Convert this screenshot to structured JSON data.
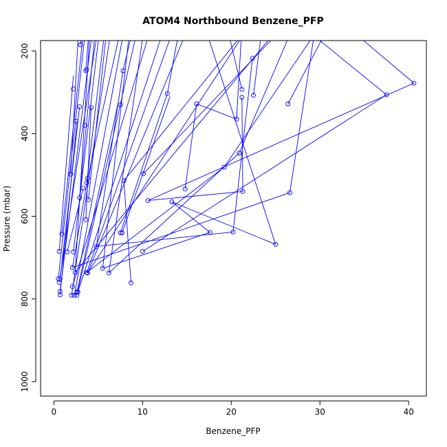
{
  "chart_data": {
    "type": "scatter",
    "title": "ATOM4 Northbound Benzene_PFP",
    "xlabel": "Benzene_PFP",
    "ylabel": "Pressure (mbar)",
    "xlim": [
      -1.5,
      42
    ],
    "ylim": [
      1035,
      175
    ],
    "y_axis": "reversed",
    "x_ticks": [
      0,
      10,
      20,
      30,
      40
    ],
    "y_ticks": [
      200,
      400,
      600,
      800,
      1000
    ],
    "grid": false,
    "legend": "none",
    "colors": {
      "series": "#0000ff",
      "axes": "#000000"
    },
    "series": [
      {
        "type": "scatter",
        "marker": "open-circle",
        "points": [
          [
            3.0,
            185
          ],
          [
            3.7,
            245
          ],
          [
            3.6,
            248
          ],
          [
            7.8,
            248
          ],
          [
            22.4,
            218
          ],
          [
            2.2,
            292
          ],
          [
            21.2,
            293
          ],
          [
            12.8,
            303
          ],
          [
            37.5,
            306
          ],
          [
            40.6,
            278
          ],
          [
            21.2,
            312
          ],
          [
            22.5,
            307
          ],
          [
            7.5,
            330
          ],
          [
            16.1,
            328
          ],
          [
            26.4,
            328
          ],
          [
            2.9,
            335
          ],
          [
            4.2,
            337
          ],
          [
            20.6,
            365
          ],
          [
            3.5,
            380
          ],
          [
            2.5,
            370
          ],
          [
            20.9,
            447
          ],
          [
            19.2,
            481
          ],
          [
            1.9,
            498
          ],
          [
            10.1,
            497
          ],
          [
            7.9,
            514
          ],
          [
            3.8,
            508
          ],
          [
            3.7,
            519
          ],
          [
            3.3,
            532
          ],
          [
            14.8,
            534
          ],
          [
            21.3,
            540
          ],
          [
            26.6,
            543
          ],
          [
            2.9,
            555
          ],
          [
            3.9,
            560
          ],
          [
            10.6,
            562
          ],
          [
            13.3,
            565
          ],
          [
            3.6,
            608
          ],
          [
            7.5,
            640
          ],
          [
            7.7,
            640
          ],
          [
            17.6,
            639
          ],
          [
            20.2,
            638
          ],
          [
            0.9,
            643
          ],
          [
            25.0,
            668
          ],
          [
            4.8,
            673
          ],
          [
            0.6,
            685
          ],
          [
            2.2,
            686
          ],
          [
            10.0,
            685
          ],
          [
            1.5,
            686
          ],
          [
            2.1,
            724
          ],
          [
            5.5,
            726
          ],
          [
            6.2,
            737
          ],
          [
            3.7,
            736
          ],
          [
            3.8,
            737
          ],
          [
            2.4,
            736
          ],
          [
            0.5,
            751
          ],
          [
            0.7,
            752
          ],
          [
            0.6,
            760
          ],
          [
            8.7,
            761
          ],
          [
            2.1,
            770
          ],
          [
            0.7,
            782
          ],
          [
            2.6,
            783
          ],
          [
            2.7,
            783
          ],
          [
            0.7,
            790
          ],
          [
            2.0,
            791
          ],
          [
            2.3,
            791
          ],
          [
            2.6,
            791
          ]
        ]
      },
      {
        "type": "line",
        "segments": [
          [
            [
              0.9,
              643
            ],
            [
              3.4,
              140
            ]
          ],
          [
            [
              0.6,
              685
            ],
            [
              2.2,
              260
            ]
          ],
          [
            [
              0.5,
              751
            ],
            [
              3.6,
              140
            ]
          ],
          [
            [
              0.7,
              782
            ],
            [
              4.4,
              140
            ]
          ],
          [
            [
              0.6,
              760
            ],
            [
              5.0,
              140
            ]
          ],
          [
            [
              0.7,
              790
            ],
            [
              2.6,
              370
            ]
          ],
          [
            [
              2.0,
              791
            ],
            [
              6.5,
              140
            ]
          ],
          [
            [
              2.3,
              791
            ],
            [
              8.0,
              140
            ]
          ],
          [
            [
              2.6,
              791
            ],
            [
              9.5,
              140
            ]
          ],
          [
            [
              2.1,
              770
            ],
            [
              11.0,
              140
            ]
          ],
          [
            [
              2.7,
              783
            ],
            [
              12.5,
              140
            ]
          ],
          [
            [
              2.6,
              783
            ],
            [
              7.2,
              330
            ]
          ],
          [
            [
              3.7,
              736
            ],
            [
              13.6,
              140
            ]
          ],
          [
            [
              3.8,
              737
            ],
            [
              15.2,
              140
            ]
          ],
          [
            [
              2.4,
              736
            ],
            [
              4.1,
              140
            ]
          ],
          [
            [
              0.7,
              752
            ],
            [
              2.9,
              335
            ]
          ],
          [
            [
              2.2,
              686
            ],
            [
              5.2,
              140
            ]
          ],
          [
            [
              1.5,
              686
            ],
            [
              3.3,
              532
            ]
          ],
          [
            [
              2.1,
              724
            ],
            [
              3.8,
              508
            ]
          ],
          [
            [
              3.6,
              608
            ],
            [
              4.2,
              337
            ]
          ],
          [
            [
              4.8,
              673
            ],
            [
              7.8,
              248
            ]
          ],
          [
            [
              5.5,
              726
            ],
            [
              8.6,
              140
            ]
          ],
          [
            [
              6.2,
              737
            ],
            [
              10.2,
              140
            ]
          ],
          [
            [
              3.9,
              560
            ],
            [
              6.0,
              140
            ]
          ],
          [
            [
              2.9,
              555
            ],
            [
              4.7,
              140
            ]
          ],
          [
            [
              1.9,
              498
            ],
            [
              2.8,
              140
            ]
          ],
          [
            [
              3.8,
              508
            ],
            [
              7.6,
              140
            ]
          ],
          [
            [
              3.7,
              519
            ],
            [
              5.8,
              140
            ]
          ],
          [
            [
              3.6,
              248
            ],
            [
              4.0,
              140
            ]
          ],
          [
            [
              3.0,
              185
            ],
            [
              3.3,
              140
            ]
          ],
          [
            [
              8.7,
              761
            ],
            [
              7.9,
              514
            ]
          ],
          [
            [
              7.5,
              640
            ],
            [
              12.8,
              303
            ]
          ],
          [
            [
              7.7,
              640
            ],
            [
              13.1,
              310
            ]
          ],
          [
            [
              10.0,
              685
            ],
            [
              37.5,
              306
            ]
          ],
          [
            [
              10.6,
              562
            ],
            [
              40.6,
              278
            ]
          ],
          [
            [
              13.3,
              565
            ],
            [
              25.0,
              668
            ]
          ],
          [
            [
              17.6,
              639
            ],
            [
              13.3,
              565
            ]
          ],
          [
            [
              20.2,
              638
            ],
            [
              22.4,
              218
            ]
          ],
          [
            [
              20.9,
              447
            ],
            [
              27.0,
              140
            ]
          ],
          [
            [
              19.2,
              481
            ],
            [
              30.0,
              140
            ]
          ],
          [
            [
              21.3,
              540
            ],
            [
              21.2,
              312
            ]
          ],
          [
            [
              26.6,
              543
            ],
            [
              29.5,
              140
            ]
          ],
          [
            [
              14.8,
              534
            ],
            [
              16.1,
              328
            ]
          ],
          [
            [
              10.1,
              497
            ],
            [
              26.0,
              140
            ]
          ],
          [
            [
              7.9,
              514
            ],
            [
              22.0,
              140
            ]
          ],
          [
            [
              20.6,
              365
            ],
            [
              21.2,
              140
            ]
          ],
          [
            [
              25.0,
              668
            ],
            [
              17.0,
              140
            ]
          ],
          [
            [
              16.1,
              328
            ],
            [
              20.6,
              365
            ]
          ],
          [
            [
              26.4,
              328
            ],
            [
              31.0,
              140
            ]
          ],
          [
            [
              21.2,
              293
            ],
            [
              19.5,
              140
            ]
          ],
          [
            [
              22.5,
              307
            ],
            [
              23.5,
              140
            ]
          ],
          [
            [
              12.8,
              303
            ],
            [
              14.2,
              140
            ]
          ],
          [
            [
              37.5,
              306
            ],
            [
              28.0,
              140
            ]
          ],
          [
            [
              40.6,
              278
            ],
            [
              33.0,
              140
            ]
          ],
          [
            [
              7.8,
              248
            ],
            [
              9.0,
              140
            ]
          ],
          [
            [
              10.6,
              562
            ],
            [
              21.3,
              540
            ]
          ],
          [
            [
              4.8,
              673
            ],
            [
              20.2,
              638
            ]
          ],
          [
            [
              5.5,
              726
            ],
            [
              17.6,
              639
            ]
          ],
          [
            [
              6.2,
              737
            ],
            [
              20.9,
              447
            ]
          ],
          [
            [
              3.7,
              736
            ],
            [
              19.2,
              481
            ]
          ],
          [
            [
              2.1,
              724
            ],
            [
              26.6,
              543
            ]
          ],
          [
            [
              3.8,
              737
            ],
            [
              22.0,
              140
            ]
          ],
          [
            [
              2.4,
              736
            ],
            [
              25.5,
              140
            ]
          ]
        ]
      }
    ]
  }
}
